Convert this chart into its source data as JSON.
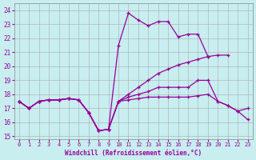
{
  "xlabel": "Windchill (Refroidissement éolien,°C)",
  "background_color": "#c8eef0",
  "line_color": "#990099",
  "grid_color": "#aaaaaa",
  "xlim": [
    -0.5,
    23.5
  ],
  "ylim": [
    14.8,
    24.5
  ],
  "yticks": [
    15,
    16,
    17,
    18,
    19,
    20,
    21,
    22,
    23,
    24
  ],
  "xticks": [
    0,
    1,
    2,
    3,
    4,
    5,
    6,
    7,
    8,
    9,
    10,
    11,
    12,
    13,
    14,
    15,
    16,
    17,
    18,
    19,
    20,
    21,
    22,
    23
  ],
  "series": [
    {
      "x": [
        0,
        1,
        2,
        3,
        4,
        5,
        6,
        7,
        8,
        9,
        10,
        11,
        12,
        13,
        14,
        15,
        16,
        17,
        18,
        19
      ],
      "y": [
        17.5,
        17.0,
        17.5,
        17.6,
        17.6,
        17.7,
        17.6,
        16.7,
        15.4,
        15.5,
        21.5,
        23.8,
        23.3,
        22.9,
        23.2,
        23.2,
        22.1,
        22.3,
        22.3,
        20.7
      ]
    },
    {
      "x": [
        0,
        1,
        2,
        3,
        4,
        5,
        6,
        7,
        8,
        9,
        10,
        11,
        12,
        13,
        14,
        15,
        16,
        17,
        18,
        19,
        20,
        21
      ],
      "y": [
        17.5,
        17.0,
        17.5,
        17.6,
        17.6,
        17.7,
        17.6,
        16.7,
        15.4,
        15.5,
        17.5,
        18.0,
        18.5,
        19.0,
        19.5,
        19.8,
        20.1,
        20.3,
        20.5,
        20.7,
        20.8,
        20.8
      ]
    },
    {
      "x": [
        0,
        1,
        2,
        3,
        4,
        5,
        6,
        7,
        8,
        9,
        10,
        11,
        12,
        13,
        14,
        15,
        16,
        17,
        18,
        19,
        20,
        21,
        22,
        23
      ],
      "y": [
        17.5,
        17.0,
        17.5,
        17.6,
        17.6,
        17.7,
        17.6,
        16.7,
        15.4,
        15.5,
        17.5,
        17.6,
        17.7,
        17.8,
        17.8,
        17.8,
        17.8,
        17.8,
        17.9,
        18.0,
        17.5,
        17.2,
        16.8,
        16.2
      ]
    },
    {
      "x": [
        0,
        1,
        2,
        3,
        4,
        5,
        6,
        7,
        8,
        9,
        10,
        11,
        12,
        13,
        14,
        15,
        16,
        17,
        18,
        19,
        20,
        21,
        22,
        23
      ],
      "y": [
        17.5,
        17.0,
        17.5,
        17.6,
        17.6,
        17.7,
        17.6,
        16.7,
        15.4,
        15.5,
        17.5,
        17.8,
        18.0,
        18.2,
        18.5,
        18.5,
        18.5,
        18.5,
        19.0,
        19.0,
        17.5,
        17.2,
        16.8,
        17.0
      ]
    }
  ]
}
